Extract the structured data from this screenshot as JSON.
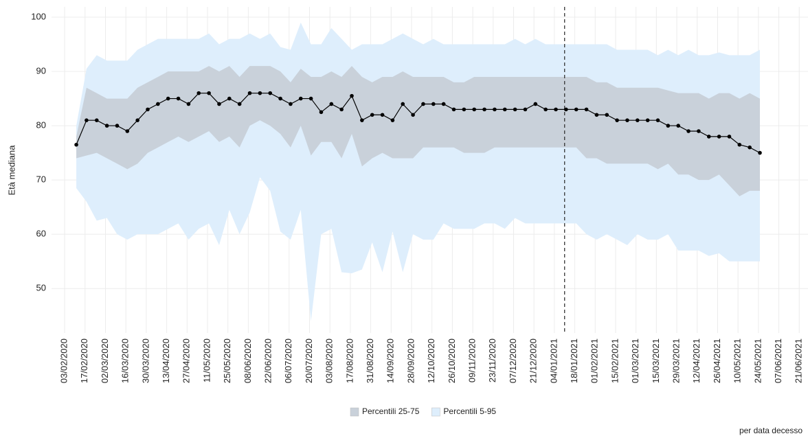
{
  "chart_data": {
    "type": "line",
    "ylabel": "Età mediana",
    "caption": "per data decesso",
    "x": [
      "11/02/2020",
      "18/02/2020",
      "25/02/2020",
      "03/03/2020",
      "10/03/2020",
      "17/03/2020",
      "24/03/2020",
      "31/03/2020",
      "07/04/2020",
      "14/04/2020",
      "21/04/2020",
      "28/04/2020",
      "05/05/2020",
      "12/05/2020",
      "19/05/2020",
      "26/05/2020",
      "02/06/2020",
      "09/06/2020",
      "16/06/2020",
      "23/06/2020",
      "30/06/2020",
      "07/07/2020",
      "14/07/2020",
      "21/07/2020",
      "28/07/2020",
      "04/08/2020",
      "11/08/2020",
      "18/08/2020",
      "25/08/2020",
      "01/09/2020",
      "08/09/2020",
      "15/09/2020",
      "22/09/2020",
      "29/09/2020",
      "06/10/2020",
      "13/10/2020",
      "20/10/2020",
      "27/10/2020",
      "03/11/2020",
      "10/11/2020",
      "17/11/2020",
      "24/11/2020",
      "01/12/2020",
      "08/12/2020",
      "15/12/2020",
      "22/12/2020",
      "29/12/2020",
      "05/01/2021",
      "12/01/2021",
      "19/01/2021",
      "26/01/2021",
      "02/02/2021",
      "09/02/2021",
      "16/02/2021",
      "23/02/2021",
      "02/03/2021",
      "09/03/2021",
      "16/03/2021",
      "23/03/2021",
      "30/03/2021",
      "06/04/2021",
      "13/04/2021",
      "20/04/2021",
      "27/04/2021",
      "04/05/2021",
      "11/05/2021",
      "18/05/2021",
      "25/05/2021"
    ],
    "series": [
      {
        "name": "Percentili 25-75",
        "color": "#c9d1da",
        "lower": [
          74,
          74.5,
          75,
          74,
          73,
          72,
          73,
          75,
          76,
          77,
          78,
          77,
          78,
          79,
          77,
          78,
          76,
          80,
          81,
          80,
          78.5,
          76,
          80,
          74.5,
          77,
          77,
          74,
          78.5,
          72.5,
          74,
          75,
          74,
          74,
          74,
          76,
          76,
          76,
          76,
          75,
          75,
          75,
          76,
          76,
          76,
          76,
          76,
          76,
          76,
          76,
          76,
          74,
          74,
          73,
          73,
          73,
          73,
          73,
          72,
          73,
          71,
          71,
          70,
          70,
          71,
          69,
          67,
          68,
          68
        ],
        "upper": [
          78,
          87,
          86,
          85,
          85,
          85,
          87,
          88,
          89,
          90,
          90,
          90,
          90,
          91,
          90,
          91,
          89,
          91,
          91,
          91,
          90,
          88,
          90.5,
          89,
          89,
          90,
          89,
          91,
          89,
          88,
          89,
          89,
          90,
          89,
          89,
          89,
          89,
          88,
          88,
          89,
          89,
          89,
          89,
          89,
          89,
          89,
          89,
          89,
          89,
          89,
          89,
          88,
          88,
          87,
          87,
          87,
          87,
          87,
          86.5,
          86,
          86,
          86,
          85,
          86,
          86,
          85,
          86,
          85
        ]
      },
      {
        "name": "Percentili 5-95",
        "color": "#deeefc",
        "lower": [
          68.5,
          66,
          62.5,
          63,
          60,
          59,
          60,
          60,
          60,
          61,
          62,
          59,
          61,
          62,
          58,
          64.5,
          60,
          64,
          70.5,
          68,
          60.5,
          59,
          64.5,
          44,
          60,
          61,
          53,
          52.8,
          53.5,
          58.5,
          53,
          60.5,
          53,
          60,
          59,
          59,
          62,
          61,
          61,
          61,
          62,
          62,
          61,
          63,
          62,
          62,
          62,
          62,
          62,
          62,
          60,
          59,
          60,
          59,
          58,
          60,
          59,
          59,
          60,
          57,
          57,
          57,
          56,
          56.5,
          55,
          55,
          55,
          55
        ],
        "upper": [
          80,
          90.5,
          93,
          92,
          92,
          92,
          94,
          95,
          96,
          96,
          96,
          96,
          96,
          97,
          95,
          96,
          96,
          97,
          96,
          97,
          94.5,
          94,
          99,
          95,
          95,
          98,
          96,
          94,
          95,
          95,
          95,
          96,
          97,
          96,
          95,
          96,
          95,
          95,
          95,
          95,
          95,
          95,
          95,
          96,
          95,
          96,
          95,
          95,
          95,
          95,
          95,
          95,
          95,
          94,
          94,
          94,
          94,
          93,
          94,
          93,
          94,
          93,
          93,
          93.5,
          93,
          93,
          93,
          94
        ]
      },
      {
        "color": "#000000",
        "values": [
          76.5,
          81,
          81,
          80,
          80,
          79,
          81,
          83,
          84,
          85,
          85,
          84,
          86,
          86,
          84,
          85,
          84,
          86,
          86,
          86,
          85,
          84,
          85,
          85,
          82.5,
          84,
          83,
          85.5,
          81,
          82,
          82,
          81,
          84,
          82,
          84,
          84,
          84,
          83,
          83,
          83,
          83,
          83,
          83,
          83,
          83,
          84,
          83,
          83,
          83,
          83,
          83,
          82,
          82,
          81,
          81,
          81,
          81,
          81,
          80,
          80,
          79,
          79,
          78,
          78,
          78,
          76.5,
          76,
          75
        ]
      }
    ],
    "xlim": [
      "25/01/2020",
      "27/06/2021"
    ],
    "xticks": [
      "03/02/2020",
      "17/02/2020",
      "02/03/2020",
      "16/03/2020",
      "30/03/2020",
      "13/04/2020",
      "27/04/2020",
      "11/05/2020",
      "25/05/2020",
      "08/06/2020",
      "22/06/2020",
      "06/07/2020",
      "20/07/2020",
      "03/08/2020",
      "17/08/2020",
      "31/08/2020",
      "14/09/2020",
      "28/09/2020",
      "12/10/2020",
      "26/10/2020",
      "09/11/2020",
      "23/11/2020",
      "07/12/2020",
      "21/12/2020",
      "04/01/2021",
      "18/01/2021",
      "01/02/2021",
      "15/02/2021",
      "01/03/2021",
      "15/03/2021",
      "29/03/2021",
      "12/04/2021",
      "26/04/2021",
      "10/05/2021",
      "24/05/2021",
      "07/06/2021",
      "21/06/2021"
    ],
    "ylim": [
      41.8,
      101.9
    ],
    "yticks": [
      50,
      60,
      70,
      80,
      90,
      100
    ],
    "vline": "11/01/2021",
    "grid": true,
    "legend_position": "bottom"
  }
}
